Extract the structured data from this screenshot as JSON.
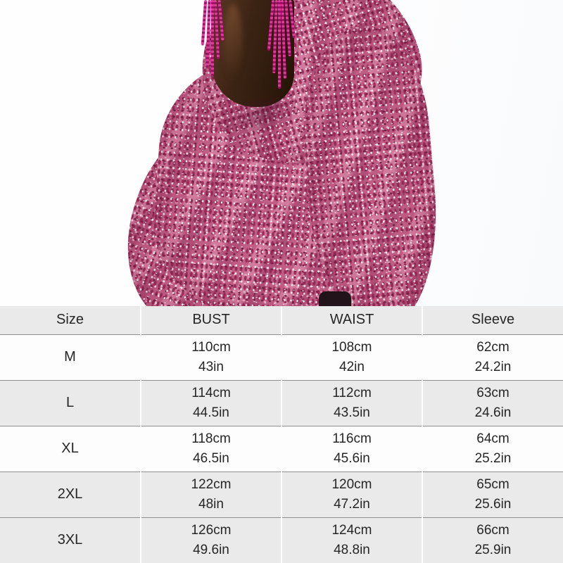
{
  "photo": {
    "alt": "Model wearing an oversized draped pink sequin top with fuchsia beaded tassel earrings",
    "colors": {
      "background": "#fdfdfd",
      "sequin_base": "#c05e86",
      "sequin_dark": "#701b40",
      "sequin_light": "#f2b8cc",
      "earring_magenta": "#c2187e",
      "skin_dark_brown": "#3c2414"
    }
  },
  "size_chart": {
    "columns": [
      "Size",
      "BUST",
      "WAIST",
      "Sleeve"
    ],
    "shaded_row_color": "#eaeaea",
    "line_color": "#8f8f8f",
    "rows": [
      {
        "size": "M",
        "bust": [
          "110cm",
          "43in"
        ],
        "waist": [
          "108cm",
          "42in"
        ],
        "sleeve": [
          "62cm",
          "24.2in"
        ]
      },
      {
        "size": "L",
        "bust": [
          "114cm",
          "44.5in"
        ],
        "waist": [
          "112cm",
          "43.5in"
        ],
        "sleeve": [
          "63cm",
          "24.6in"
        ]
      },
      {
        "size": "XL",
        "bust": [
          "118cm",
          "46.5in"
        ],
        "waist": [
          "116cm",
          "45.6in"
        ],
        "sleeve": [
          "64cm",
          "25.2in"
        ]
      },
      {
        "size": "2XL",
        "bust": [
          "122cm",
          "48in"
        ],
        "waist": [
          "120cm",
          "47.2in"
        ],
        "sleeve": [
          "65cm",
          "25.6in"
        ]
      },
      {
        "size": "3XL",
        "bust": [
          "126cm",
          "49.6in"
        ],
        "waist": [
          "124cm",
          "48.8in"
        ],
        "sleeve": [
          "66cm",
          "25.9in"
        ]
      }
    ]
  }
}
